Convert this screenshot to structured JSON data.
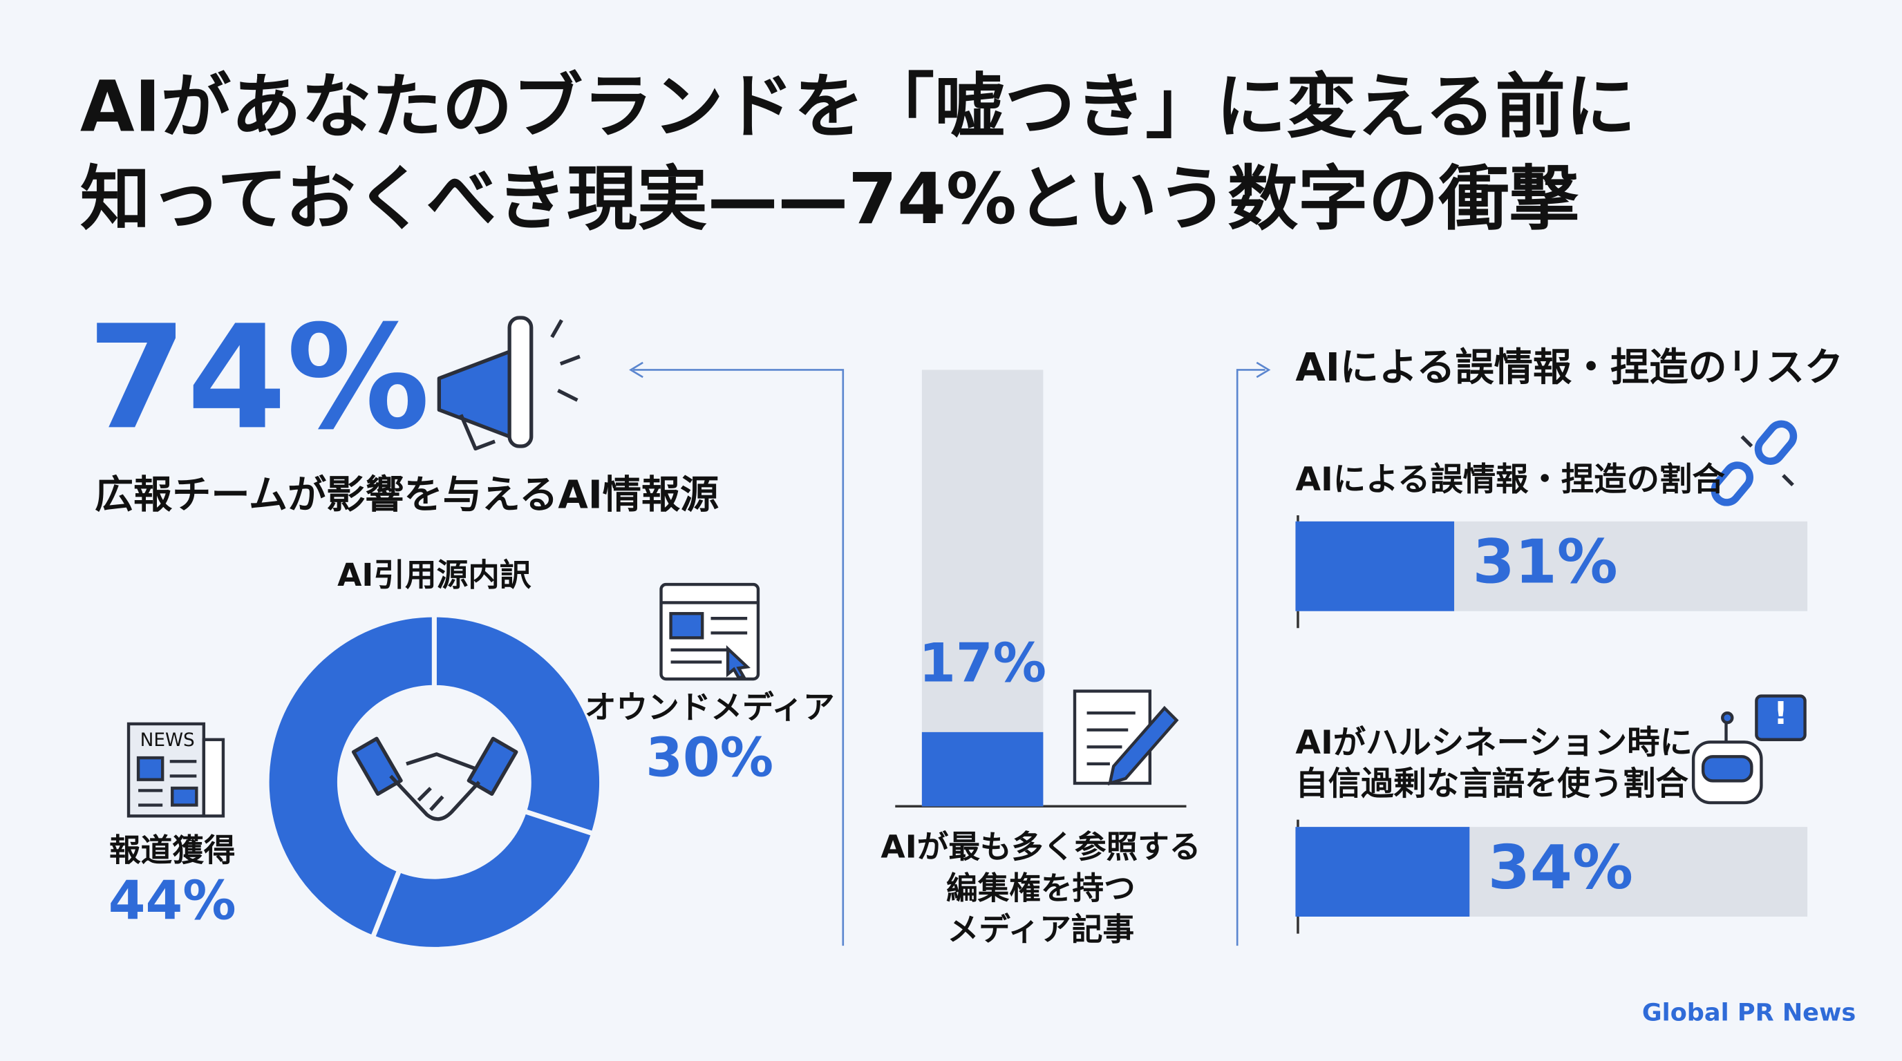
{
  "title": [
    "AIがあなたのブランドを「嘘つき」に変える前に",
    "知っておくべき現実——74%という数字の衝撃"
  ],
  "hero": {
    "text": "74%",
    "label": "広報チームが影響を与えるAI情報源"
  },
  "chart_data": [
    {
      "type": "pie",
      "title": "AI引用源内訳",
      "categories": [
        "オウンドメディア",
        null,
        "報道獲得"
      ],
      "values": [
        30,
        26,
        44
      ],
      "value_labels": [
        "30%",
        null,
        "44%"
      ],
      "color": "#2f6bd8"
    },
    {
      "type": "bar",
      "categories": [
        "AIが最も多く参照する\n編集権を持つ\nメディア記事"
      ],
      "values": [
        17
      ],
      "value_labels": [
        "17%"
      ],
      "ylim": [
        0,
        100
      ],
      "color": "#2f6bd8",
      "track_color": "#dde1e8"
    },
    {
      "type": "barh",
      "title": "AIによる誤情報・捏造のリスク",
      "categories": [
        "AIによる誤情報・捏造の割合",
        "AIがハルシネーション時に\n自信過剰な言語を使う割合"
      ],
      "values": [
        31,
        34
      ],
      "value_labels": [
        "31%",
        "34%"
      ],
      "xlim": [
        0,
        100
      ],
      "color": "#2f6bd8",
      "track_color": "#dde1e8"
    }
  ],
  "footer": "Global PR News"
}
